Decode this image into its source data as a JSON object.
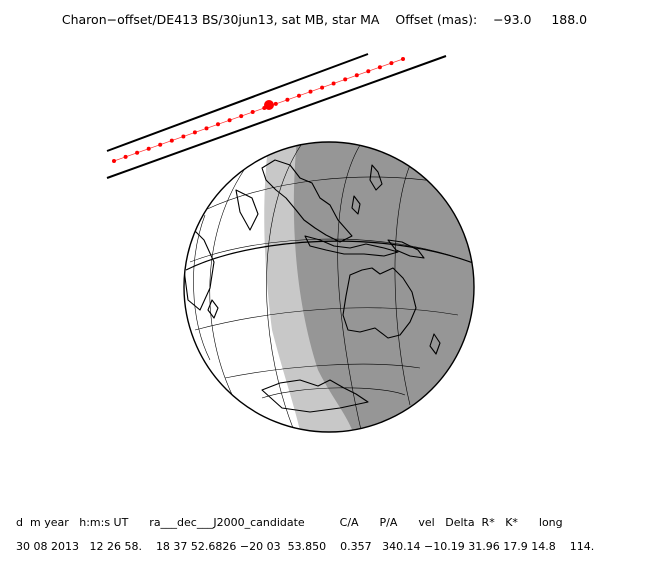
{
  "header": {
    "title": "Charon−offset/DE413 BS/30jun13, sat MB, star MA",
    "offset_label": "Offset (mas):",
    "offset_ra": "−93.0",
    "offset_dec": "188.0"
  },
  "table": {
    "columns": "d  m year   h:m:s UT      ra___dec___J2000_candidate          C/A      P/A      vel   Delta  R*   K*      long",
    "values": "30 08 2013   12 26 58.    18 37 52.6826 −20 03  53.850    0.357   340.14 −10.19 31.96 17.9 14.8    114."
  },
  "colors": {
    "day_side": "#ffffff",
    "twilight": "#c8c8c8",
    "night_side": "#969696",
    "track": "#ff0000",
    "outline": "#000000"
  }
}
